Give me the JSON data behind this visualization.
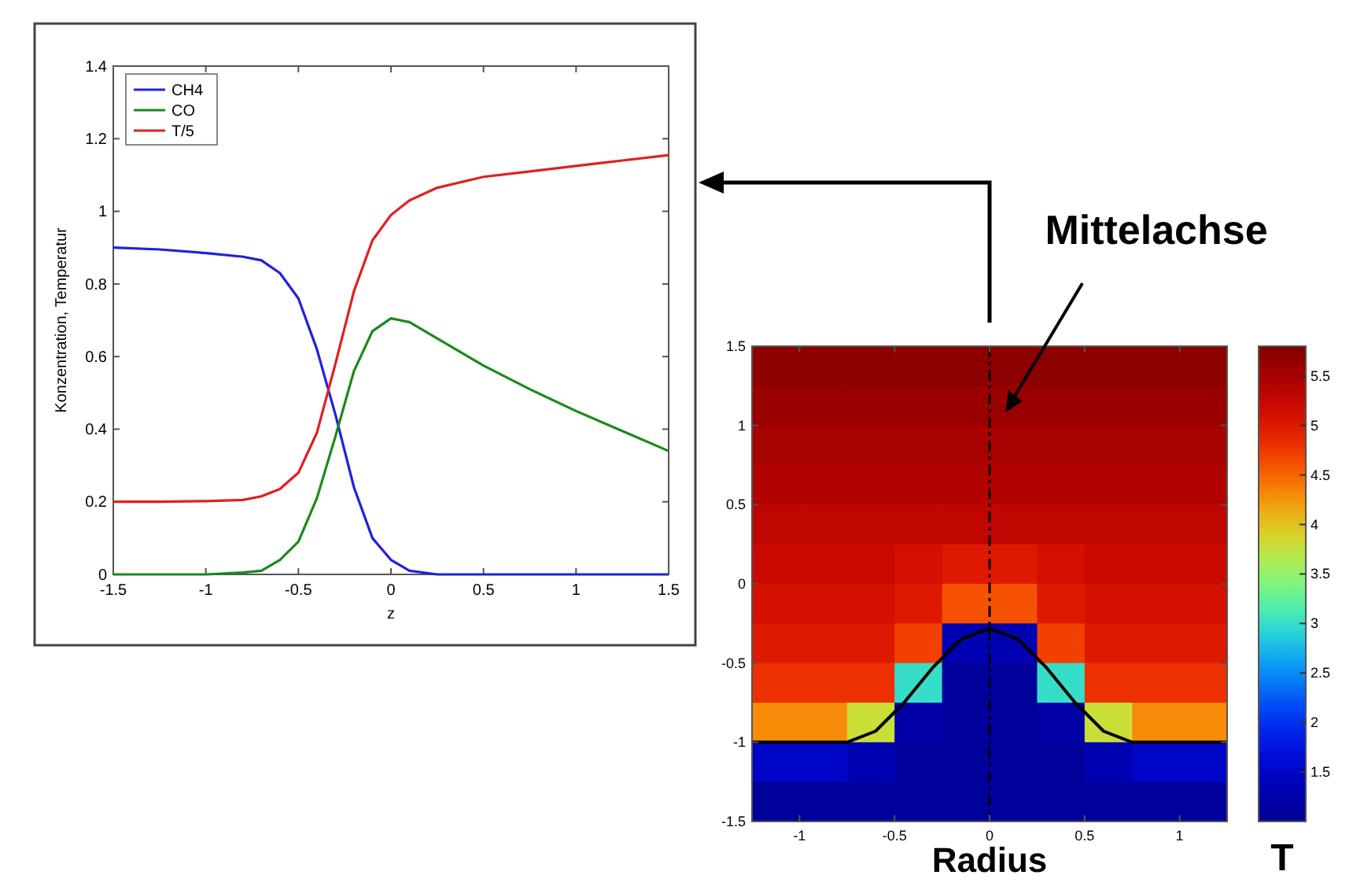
{
  "chart_data": [
    {
      "type": "line",
      "xlabel": "z",
      "ylabel": "Konzentration, Temperatur",
      "x": [
        -1.5,
        -1.25,
        -1,
        -0.8,
        -0.7,
        -0.6,
        -0.5,
        -0.4,
        -0.3,
        -0.2,
        -0.1,
        0,
        0.1,
        0.25,
        0.5,
        0.75,
        1,
        1.25,
        1.5
      ],
      "series": [
        {
          "name": "CH4",
          "color": "#2020e0",
          "values": [
            0.9,
            0.895,
            0.885,
            0.875,
            0.865,
            0.83,
            0.76,
            0.62,
            0.44,
            0.24,
            0.1,
            0.04,
            0.01,
            0,
            0,
            0,
            0,
            0,
            0
          ]
        },
        {
          "name": "CO",
          "color": "#1a8a1a",
          "values": [
            0,
            0,
            0,
            0.005,
            0.01,
            0.04,
            0.09,
            0.21,
            0.38,
            0.56,
            0.67,
            0.705,
            0.695,
            0.65,
            0.575,
            0.51,
            0.45,
            0.395,
            0.34
          ]
        },
        {
          "name": "T/5",
          "color": "#e02020",
          "values": [
            0.2,
            0.2,
            0.202,
            0.205,
            0.215,
            0.235,
            0.28,
            0.39,
            0.58,
            0.78,
            0.92,
            0.99,
            1.03,
            1.065,
            1.095,
            1.11,
            1.125,
            1.14,
            1.155
          ]
        }
      ],
      "xlim": [
        -1.5,
        1.5
      ],
      "xticks": [
        -1.5,
        -1,
        -0.5,
        0,
        0.5,
        1,
        1.5
      ],
      "ylim": [
        0,
        1.4
      ],
      "yticks": [
        0,
        0.2,
        0.4,
        0.6,
        0.8,
        1,
        1.2,
        1.4
      ],
      "legend": "top left",
      "grid": false
    },
    {
      "type": "heatmap",
      "xlabel": "Radius",
      "clabel": "T",
      "x": [
        -1.125,
        -0.875,
        -0.625,
        -0.375,
        -0.125,
        0.125,
        0.375,
        0.625,
        0.875,
        1.125
      ],
      "cells": [
        [
          5.7,
          5.7,
          5.7,
          5.7,
          5.7,
          5.7,
          5.7,
          5.7,
          5.7,
          5.7
        ],
        [
          5.6,
          5.6,
          5.6,
          5.6,
          5.6,
          5.6,
          5.6,
          5.6,
          5.6,
          5.6
        ],
        [
          5.5,
          5.5,
          5.5,
          5.5,
          5.5,
          5.5,
          5.5,
          5.5,
          5.5,
          5.5
        ],
        [
          5.4,
          5.4,
          5.4,
          5.4,
          5.4,
          5.4,
          5.4,
          5.4,
          5.4,
          5.4
        ],
        [
          5.3,
          5.3,
          5.3,
          5.3,
          5.3,
          5.3,
          5.3,
          5.3,
          5.3,
          5.3
        ],
        [
          5.2,
          5.2,
          5.2,
          5.1,
          5,
          5,
          5.1,
          5.2,
          5.2,
          5.2
        ],
        [
          5.1,
          5.1,
          5.1,
          5,
          4.6,
          4.6,
          5,
          5.1,
          5.1,
          5.1
        ],
        [
          5,
          5,
          5,
          4.7,
          1.3,
          1.3,
          4.7,
          5,
          5,
          5
        ],
        [
          4.8,
          4.8,
          4.8,
          3,
          1.1,
          1.1,
          3,
          4.8,
          4.8,
          4.8
        ],
        [
          4.3,
          4.3,
          3.8,
          1.2,
          1.1,
          1.1,
          1.2,
          3.8,
          4.3,
          4.3
        ],
        [
          1.5,
          1.5,
          1.3,
          1.1,
          1.1,
          1.1,
          1.1,
          1.3,
          1.5,
          1.5
        ],
        [
          1.1,
          1.1,
          1.1,
          1.1,
          1.1,
          1.1,
          1.1,
          1.1,
          1.1,
          1.1
        ]
      ],
      "series": [
        {
          "type": "line",
          "color": "#000000",
          "x": [
            -1.25,
            -0.75,
            -0.6,
            -0.45,
            -0.3,
            -0.15,
            0,
            0.15,
            0.3,
            0.45,
            0.6,
            0.75,
            1.25
          ],
          "values": [
            -1,
            -1,
            -0.93,
            -0.75,
            -0.53,
            -0.35,
            -0.28,
            -0.35,
            -0.53,
            -0.75,
            -0.93,
            -1,
            -1
          ]
        }
      ],
      "xlim": [
        -1.25,
        1.25
      ],
      "xticks": [
        -1,
        -0.5,
        0,
        0.5,
        1
      ],
      "ylim": [
        -1.5,
        1.5
      ],
      "yticks": [
        -1.5,
        -1,
        -0.5,
        0,
        0.5,
        1,
        1.5
      ],
      "clim": [
        1,
        5.8
      ],
      "cticks": [
        1.5,
        2,
        2.5,
        3,
        3.5,
        4,
        4.5,
        5,
        5.5
      ],
      "ref_lines": [
        {
          "axis": "x",
          "value": 0,
          "label": "Mittelachse",
          "color": "#000000",
          "line_style": "dashed"
        }
      ]
    }
  ]
}
